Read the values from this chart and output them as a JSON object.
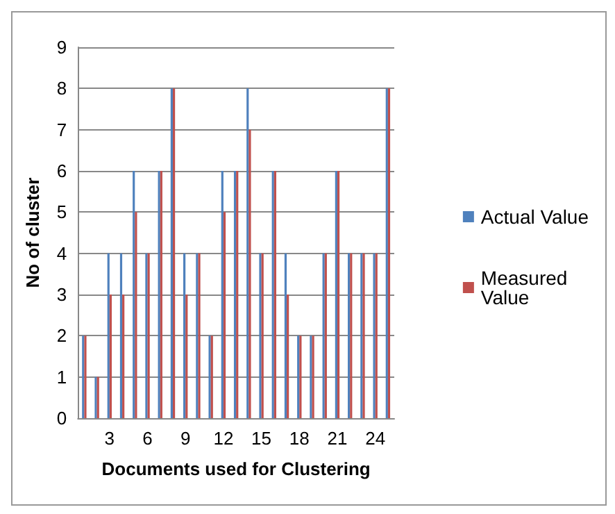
{
  "chart_data": {
    "type": "bar",
    "xlabel": "Documents used for Clustering",
    "ylabel": "No of cluster",
    "categories": [
      null,
      null,
      "3",
      null,
      null,
      "6",
      null,
      null,
      "9",
      null,
      null,
      "12",
      null,
      null,
      "15",
      null,
      null,
      "18",
      null,
      null,
      "21",
      null,
      null,
      "24",
      null
    ],
    "series": [
      {
        "name": "Actual Value",
        "color": "#4f81bd",
        "values": [
          2,
          1,
          4,
          4,
          6,
          4,
          6,
          8,
          4,
          4,
          2,
          6,
          6,
          8,
          4,
          6,
          4,
          2,
          2,
          4,
          6,
          4,
          4,
          4,
          8
        ]
      },
      {
        "name": "Measured Value",
        "color": "#c0504d",
        "values": [
          2,
          1,
          3,
          3,
          5,
          4,
          6,
          8,
          3,
          4,
          2,
          5,
          6,
          7,
          4,
          6,
          3,
          2,
          2,
          4,
          6,
          4,
          4,
          4,
          8
        ]
      }
    ],
    "ylim": [
      0,
      9
    ],
    "yticks": [
      0,
      1,
      2,
      3,
      4,
      5,
      6,
      7,
      8,
      9
    ],
    "grid": "y",
    "legend": "right"
  }
}
